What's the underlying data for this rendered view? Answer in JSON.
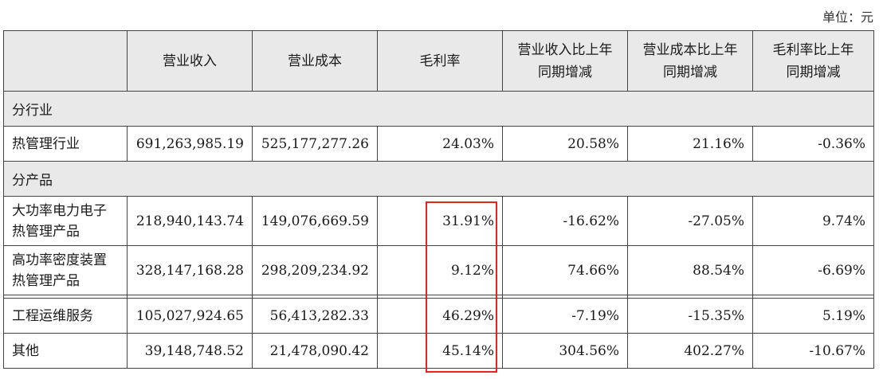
{
  "unit": "单位：元",
  "headers": [
    "",
    "营业收入",
    "营业成本",
    "毛利率",
    "营业收入比上年同期增减",
    "营业成本比上年同期增减",
    "毛利率比上年同期增减"
  ],
  "section_industry": "分行业",
  "industry_rows": [
    {
      "name": "热管理行业",
      "revenue": "691,263,985.19",
      "cost": "525,177,277.26",
      "margin": "24.03%",
      "rev_change": "20.58%",
      "cost_change": "21.16%",
      "margin_change": "-0.36%"
    }
  ],
  "section_product": "分产品",
  "product_rows": [
    {
      "name": "大功率电力电子热管理产品",
      "revenue": "218,940,143.74",
      "cost": "149,076,669.59",
      "margin": "31.91%",
      "rev_change": "-16.62%",
      "cost_change": "-27.05%",
      "margin_change": "9.74%"
    },
    {
      "name": "高功率密度装置热管理产品",
      "revenue": "328,147,168.28",
      "cost": "298,209,234.92",
      "margin": "9.12%",
      "rev_change": "74.66%",
      "cost_change": "88.54%",
      "margin_change": "-6.69%"
    },
    {
      "name": "工程运维服务",
      "revenue": "105,027,924.65",
      "cost": "56,413,282.33",
      "margin": "46.29%",
      "rev_change": "-7.19%",
      "cost_change": "-15.35%",
      "margin_change": "5.19%"
    },
    {
      "name": "其他",
      "revenue": "39,148,748.52",
      "cost": "21,478,090.42",
      "margin": "45.14%",
      "rev_change": "304.56%",
      "cost_change": "402.27%",
      "margin_change": "-10.67%"
    }
  ],
  "highlight_color": "#e0281e"
}
